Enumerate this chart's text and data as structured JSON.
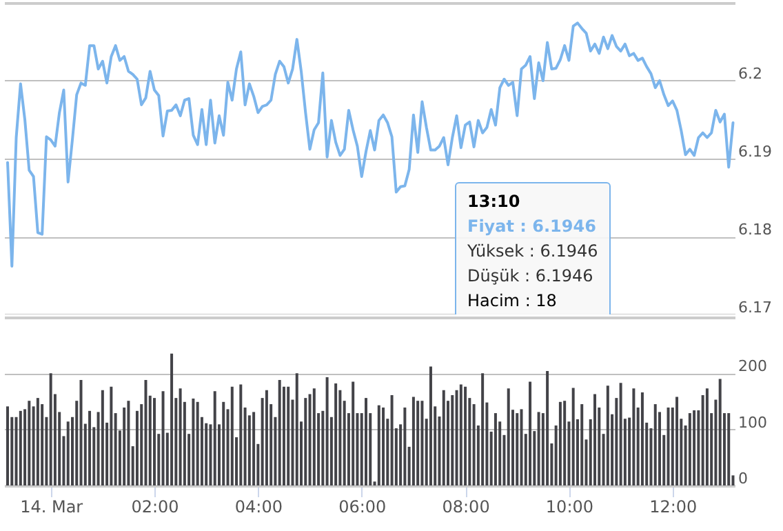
{
  "chart_data": [
    {
      "type": "line",
      "tick_labels": "y",
      "grid": "y",
      "xlim": [
        -0.9,
        13.2
      ],
      "ylim": [
        6.17,
        6.21
      ],
      "yticks": [
        6.17,
        6.18,
        6.19,
        6.2
      ],
      "annotations": [
        "13:10",
        "Fiyat : 6.1946",
        "Yüksek : 6.1946",
        "Düşük : 6.1946",
        "Hacim : 18"
      ],
      "x": [
        -0.8333,
        -0.75,
        -0.6667,
        -0.5833,
        -0.5,
        -0.4167,
        -0.3333,
        -0.25,
        -0.1667,
        -0.0833,
        0,
        0.0833,
        0.1667,
        0.25,
        0.3333,
        0.4167,
        0.5,
        0.5833,
        0.6667,
        0.75,
        0.8333,
        0.9167,
        1,
        1.0833,
        1.1667,
        1.25,
        1.3333,
        1.4167,
        1.5,
        1.5833,
        1.6667,
        1.75,
        1.8333,
        1.9167,
        2,
        2.0833,
        2.1667,
        2.25,
        2.3333,
        2.4167,
        2.5,
        2.5833,
        2.6667,
        2.75,
        2.8333,
        2.9167,
        3,
        3.0833,
        3.1667,
        3.25,
        3.3333,
        3.4167,
        3.5,
        3.5833,
        3.6667,
        3.75,
        3.8333,
        3.9167,
        4,
        4.0833,
        4.1667,
        4.25,
        4.3333,
        4.4167,
        4.5,
        4.5833,
        4.6667,
        4.75,
        4.8333,
        4.9167,
        5,
        5.0833,
        5.1667,
        5.25,
        5.3333,
        5.4167,
        5.5,
        5.5833,
        5.6667,
        5.75,
        5.8333,
        5.9167,
        6,
        6.0833,
        6.1667,
        6.25,
        6.3333,
        6.4167,
        6.5,
        6.5833,
        6.6667,
        6.75,
        6.8333,
        6.9167,
        7,
        7.0833,
        7.1667,
        7.25,
        7.3333,
        7.4167,
        7.5,
        7.5833,
        7.6667,
        7.75,
        7.8333,
        7.9167,
        8,
        8.0833,
        8.1667,
        8.25,
        8.3333,
        8.4167,
        8.5,
        8.5833,
        8.6667,
        8.75,
        8.8333,
        8.9167,
        9,
        9.0833,
        9.1667,
        9.25,
        9.3333,
        9.4167,
        9.5,
        9.5833,
        9.6667,
        9.75,
        9.8333,
        9.9167,
        10,
        10.0833,
        10.1667,
        10.25,
        10.3333,
        10.4167,
        10.5,
        10.5833,
        10.6667,
        10.75,
        10.8333,
        10.9167,
        11,
        11.0833,
        11.1667,
        11.25,
        11.3333,
        11.4167,
        11.5,
        11.5833,
        11.6667,
        11.75,
        11.8333,
        11.9167,
        12,
        12.0833,
        12.1667,
        12.25,
        12.3333,
        12.4167,
        12.5,
        12.5833,
        12.6667,
        12.75,
        12.8333,
        12.9167,
        13,
        13.0833,
        13.1667
      ],
      "series": [
        {
          "color": "#7cb5ec",
          "values": [
            6.1895,
            6.1762,
            6.1927,
            6.1996,
            6.195,
            6.1885,
            6.1877,
            6.1805,
            6.1803,
            6.1928,
            6.1924,
            6.1916,
            6.1959,
            6.1988,
            6.187,
            6.1924,
            6.1982,
            6.1997,
            6.1994,
            6.2045,
            6.2045,
            6.2015,
            6.2025,
            6.1997,
            6.2031,
            6.2045,
            6.2026,
            6.2031,
            6.2012,
            6.2008,
            6.2002,
            6.1969,
            6.1978,
            6.2012,
            6.1988,
            6.1981,
            6.1929,
            6.1961,
            6.1962,
            6.1969,
            6.1955,
            6.1975,
            6.1977,
            6.193,
            6.1918,
            6.1963,
            6.1918,
            6.1975,
            6.192,
            6.1955,
            6.193,
            6.1998,
            6.1975,
            6.2015,
            6.2037,
            6.1969,
            6.1996,
            6.198,
            6.1959,
            6.1967,
            6.1969,
            6.1975,
            6.2008,
            6.2025,
            6.2018,
            6.1997,
            6.2015,
            6.2053,
            6.2012,
            6.1959,
            6.1912,
            6.1937,
            6.1946,
            6.201,
            6.1902,
            6.1949,
            6.1921,
            6.1904,
            6.1912,
            6.1962,
            6.1937,
            6.1916,
            6.1877,
            6.1909,
            6.1936,
            6.1911,
            6.1949,
            6.1956,
            6.1946,
            6.1928,
            6.1857,
            6.1864,
            6.1865,
            6.1886,
            6.1956,
            6.1908,
            6.1973,
            6.194,
            6.1911,
            6.1911,
            6.1916,
            6.1927,
            6.1892,
            6.1927,
            6.1955,
            6.1914,
            6.1943,
            6.1947,
            6.1915,
            6.1949,
            6.1933,
            6.194,
            6.1963,
            6.1943,
            6.1991,
            6.2002,
            6.1994,
            6.1998,
            6.1955,
            6.2015,
            6.202,
            6.2031,
            6.1977,
            6.2023,
            6.2,
            6.2049,
            6.2015,
            6.2016,
            6.2027,
            6.2045,
            6.2026,
            6.207,
            6.2074,
            6.2067,
            6.2061,
            6.2038,
            6.2047,
            6.2035,
            6.2056,
            6.2041,
            6.2058,
            6.2044,
            6.2038,
            6.2047,
            6.2032,
            6.2035,
            6.2026,
            6.2029,
            6.2018,
            6.2009,
            6.1991,
            6.2,
            6.1982,
            6.1968,
            6.1974,
            6.1962,
            6.1936,
            6.1905,
            6.1912,
            6.1904,
            6.1927,
            6.1933,
            6.1927,
            6.1933,
            6.1962,
            6.1947,
            6.1957,
            6.1889,
            6.1946
          ]
        }
      ]
    },
    {
      "type": "bar",
      "grid": "y",
      "color": "#434348",
      "xlim": [
        -0.9,
        13.2
      ],
      "ylim": [
        0,
        300
      ],
      "yticks": [
        0,
        100,
        200
      ],
      "xticks": [
        {
          "value": 0,
          "label": "14. Mar"
        },
        {
          "value": 2,
          "label": "02:00"
        },
        {
          "value": 4,
          "label": "04:00"
        },
        {
          "value": 6,
          "label": "06:00"
        },
        {
          "value": 8,
          "label": "08:00"
        },
        {
          "value": 10,
          "label": "10:00"
        },
        {
          "value": 12,
          "label": "12:00"
        }
      ],
      "x": [
        -0.8333,
        -0.75,
        -0.6667,
        -0.5833,
        -0.5,
        -0.4167,
        -0.3333,
        -0.25,
        -0.1667,
        -0.0833,
        0,
        0.0833,
        0.1667,
        0.25,
        0.3333,
        0.4167,
        0.5,
        0.5833,
        0.6667,
        0.75,
        0.8333,
        0.9167,
        1,
        1.0833,
        1.1667,
        1.25,
        1.3333,
        1.4167,
        1.5,
        1.5833,
        1.6667,
        1.75,
        1.8333,
        1.9167,
        2,
        2.0833,
        2.1667,
        2.25,
        2.3333,
        2.4167,
        2.5,
        2.5833,
        2.6667,
        2.75,
        2.8333,
        2.9167,
        3,
        3.0833,
        3.1667,
        3.25,
        3.3333,
        3.4167,
        3.5,
        3.5833,
        3.6667,
        3.75,
        3.8333,
        3.9167,
        4,
        4.0833,
        4.1667,
        4.25,
        4.3333,
        4.4167,
        4.5,
        4.5833,
        4.6667,
        4.75,
        4.8333,
        4.9167,
        5,
        5.0833,
        5.1667,
        5.25,
        5.3333,
        5.4167,
        5.5,
        5.5833,
        5.6667,
        5.75,
        5.8333,
        5.9167,
        6,
        6.0833,
        6.1667,
        6.25,
        6.3333,
        6.4167,
        6.5,
        6.5833,
        6.6667,
        6.75,
        6.8333,
        6.9167,
        7,
        7.0833,
        7.1667,
        7.25,
        7.3333,
        7.4167,
        7.5,
        7.5833,
        7.6667,
        7.75,
        7.8333,
        7.9167,
        8,
        8.0833,
        8.1667,
        8.25,
        8.3333,
        8.4167,
        8.5,
        8.5833,
        8.6667,
        8.75,
        8.8333,
        8.9167,
        9,
        9.0833,
        9.1667,
        9.25,
        9.3333,
        9.4167,
        9.5,
        9.5833,
        9.6667,
        9.75,
        9.8333,
        9.9167,
        10,
        10.0833,
        10.1667,
        10.25,
        10.3333,
        10.4167,
        10.5,
        10.5833,
        10.6667,
        10.75,
        10.8333,
        10.9167,
        11,
        11.0833,
        11.1667,
        11.25,
        11.3333,
        11.4167,
        11.5,
        11.5833,
        11.6667,
        11.75,
        11.8333,
        11.9167,
        12,
        12.0833,
        12.1667,
        12.25,
        12.3333,
        12.4167,
        12.5,
        12.5833,
        12.6667,
        12.75,
        12.8333,
        12.9167,
        13,
        13.0833,
        13.1667
      ],
      "values": [
        141,
        122,
        122,
        133,
        136,
        151,
        141,
        156,
        145,
        122,
        200,
        163,
        131,
        88,
        114,
        122,
        151,
        188,
        110,
        133,
        104,
        131,
        170,
        112,
        176,
        129,
        98,
        139,
        151,
        70,
        133,
        145,
        188,
        160,
        156,
        92,
        168,
        94,
        235,
        156,
        173,
        149,
        92,
        155,
        149,
        122,
        111,
        109,
        168,
        109,
        149,
        136,
        176,
        86,
        180,
        139,
        125,
        131,
        74,
        156,
        170,
        145,
        122,
        188,
        176,
        176,
        153,
        200,
        114,
        156,
        163,
        173,
        129,
        133,
        193,
        122,
        182,
        170,
        151,
        129,
        185,
        129,
        129,
        156,
        129,
        7,
        143,
        139,
        119,
        161,
        102,
        109,
        139,
        69,
        158,
        151,
        151,
        119,
        212,
        141,
        123,
        170,
        151,
        161,
        170,
        180,
        176,
        156,
        145,
        107,
        200,
        148,
        96,
        129,
        114,
        90,
        173,
        135,
        129,
        136,
        92,
        185,
        97,
        131,
        129,
        204,
        75,
        107,
        149,
        151,
        114,
        174,
        118,
        145,
        82,
        118,
        163,
        139,
        92,
        178,
        127,
        156,
        183,
        119,
        121,
        173,
        139,
        166,
        112,
        102,
        145,
        131,
        90,
        139,
        139,
        158,
        119,
        107,
        129,
        134,
        134,
        161,
        173,
        129,
        153,
        190,
        129,
        129,
        18
      ]
    }
  ]
}
